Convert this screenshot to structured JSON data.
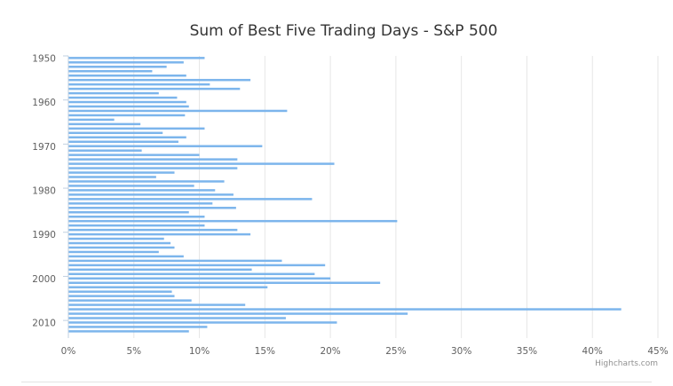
{
  "chart_data": {
    "type": "bar",
    "orientation": "horizontal",
    "title": "Sum of Best Five Trading Days - S&P 500",
    "credit": "Highcharts.com",
    "xlabel": "",
    "ylabel": "",
    "value_unit": "%",
    "xlim": [
      0,
      45
    ],
    "value_ticks": [
      "0%",
      "5%",
      "10%",
      "15%",
      "20%",
      "25%",
      "30%",
      "35%",
      "40%",
      "45%"
    ],
    "category_tick_labels": [
      "1950",
      "1960",
      "1970",
      "1980",
      "1990",
      "2000",
      "2010"
    ],
    "categories": [
      1950,
      1951,
      1952,
      1953,
      1954,
      1955,
      1956,
      1957,
      1958,
      1959,
      1960,
      1961,
      1962,
      1963,
      1964,
      1965,
      1966,
      1967,
      1968,
      1969,
      1970,
      1971,
      1972,
      1973,
      1974,
      1975,
      1976,
      1977,
      1978,
      1979,
      1980,
      1981,
      1982,
      1983,
      1984,
      1985,
      1986,
      1987,
      1988,
      1989,
      1990,
      1991,
      1992,
      1993,
      1994,
      1995,
      1996,
      1997,
      1998,
      1999,
      2000,
      2001,
      2002,
      2003,
      2004,
      2005,
      2006,
      2007,
      2008,
      2009,
      2010,
      2011,
      2012,
      2013
    ],
    "values": [
      10.4,
      8.8,
      7.5,
      6.4,
      9.0,
      13.9,
      10.8,
      13.1,
      6.9,
      8.3,
      9.0,
      9.2,
      16.7,
      8.9,
      3.5,
      5.5,
      10.4,
      7.2,
      9.0,
      8.4,
      14.8,
      5.6,
      10.0,
      12.9,
      20.3,
      12.9,
      8.1,
      6.7,
      11.9,
      9.6,
      11.2,
      12.6,
      18.6,
      11.0,
      12.8,
      9.2,
      10.4,
      25.1,
      10.4,
      12.9,
      13.9,
      7.3,
      7.8,
      8.1,
      6.9,
      8.8,
      16.3,
      19.6,
      14.0,
      18.8,
      20.0,
      23.8,
      15.2,
      7.9,
      8.1,
      9.4,
      13.5,
      42.2,
      25.9,
      16.6,
      20.5,
      10.6,
      9.2,
      0
    ]
  }
}
